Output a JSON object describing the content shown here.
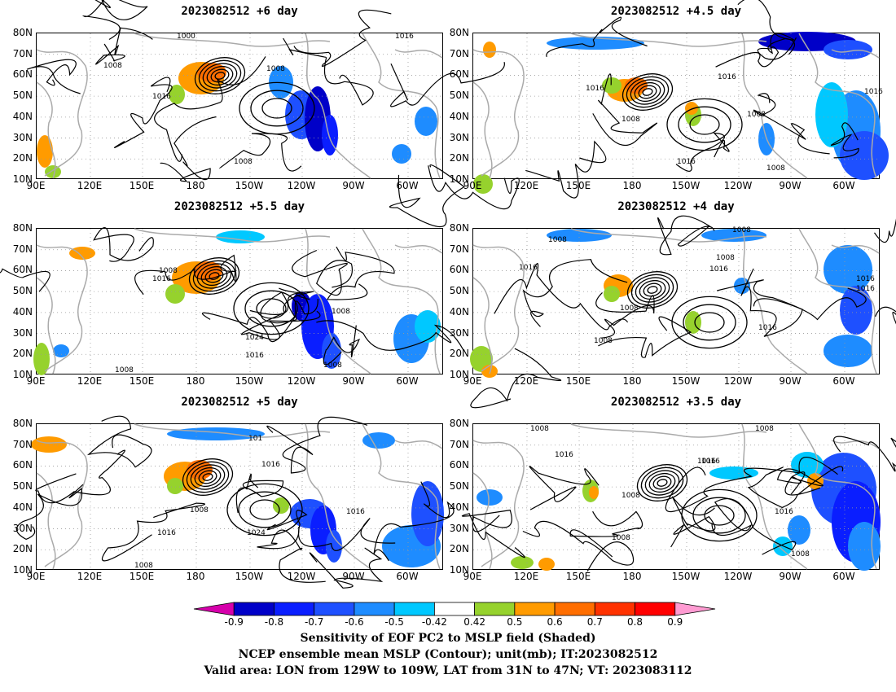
{
  "panels": [
    {
      "title": "2023082512  +6 day"
    },
    {
      "title": "2023082512  +4.5 day"
    },
    {
      "title": "2023082512  +5.5 day"
    },
    {
      "title": "2023082512  +4 day"
    },
    {
      "title": "2023082512  +5 day"
    },
    {
      "title": "2023082512  +3.5 day"
    }
  ],
  "axes": {
    "y_ticks": [
      "80N",
      "70N",
      "60N",
      "50N",
      "40N",
      "30N",
      "20N",
      "10N"
    ],
    "x_ticks": [
      "90E",
      "120E",
      "150E",
      "180",
      "150W",
      "120W",
      "90W",
      "60W"
    ]
  },
  "contour_labels": [
    [
      "1000",
      "1008",
      "1008",
      "1016",
      "1008",
      "1016"
    ],
    [
      "1016",
      "1016",
      "1008",
      "1016",
      "1008",
      "1016",
      "1008"
    ],
    [
      "1008",
      "1016",
      "1008",
      "1024",
      "1016",
      "1008",
      "1008"
    ],
    [
      "1008",
      "1008",
      "1016",
      "1016",
      "1008",
      "1008",
      "1008",
      "1016",
      "1016",
      "1016"
    ],
    [
      "1016",
      "1008",
      "1016",
      "1024",
      "1016",
      "1008",
      "101"
    ],
    [
      "1008",
      "1016",
      "1008",
      "1016",
      "1008",
      "1016",
      "1016",
      "1008",
      "1008"
    ]
  ],
  "colorbar": {
    "labels": [
      "-0.9",
      "-0.8",
      "-0.7",
      "-0.6",
      "-0.5",
      "-0.42",
      "0.42",
      "0.5",
      "0.6",
      "0.7",
      "0.8",
      "0.9"
    ],
    "colors": [
      "#d600ab",
      "#0000c8",
      "#0a1eff",
      "#1e50ff",
      "#1e8cff",
      "#00c8ff",
      "#ffffff",
      "#96d22d",
      "#ff9b00",
      "#ff6e00",
      "#ff3200",
      "#ff0000",
      "#ff9bd2"
    ]
  },
  "caption": {
    "line1": "Sensitivity of EOF PC2 to MSLP field (Shaded)",
    "line2": "NCEP ensemble mean MSLP (Contour); unit(mb); IT:2023082512",
    "line3": "Valid area: LON from 129W to 109W, LAT from 31N to 47N; VT: 2023083112"
  }
}
